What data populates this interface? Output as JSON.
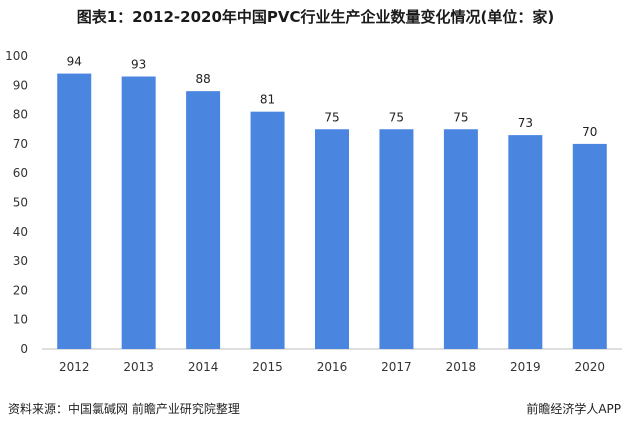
{
  "header": {
    "title": "图表1：2012-2020年中国PVC行业生产企业数量变化情况(单位：家)"
  },
  "footer": {
    "source": "资料来源：中国氯碱网 前瞻产业研究院整理",
    "brand": "前瞻经济学人APP"
  },
  "colors": {
    "bar": "#4a86e0",
    "axis": "#bfbfbf",
    "text": "#333333"
  },
  "chart_data": {
    "type": "bar",
    "categories": [
      "2012",
      "2013",
      "2014",
      "2015",
      "2016",
      "2017",
      "2018",
      "2019",
      "2020"
    ],
    "values": [
      94,
      93,
      88,
      81,
      75,
      75,
      75,
      73,
      70
    ],
    "title": "图表1：2012-2020年中国PVC行业生产企业数量变化情况(单位：家)",
    "ylim": [
      0,
      100
    ],
    "yticks": [
      0,
      10,
      20,
      30,
      40,
      50,
      60,
      70,
      80,
      90,
      100
    ],
    "grid": false,
    "legend": "none"
  }
}
